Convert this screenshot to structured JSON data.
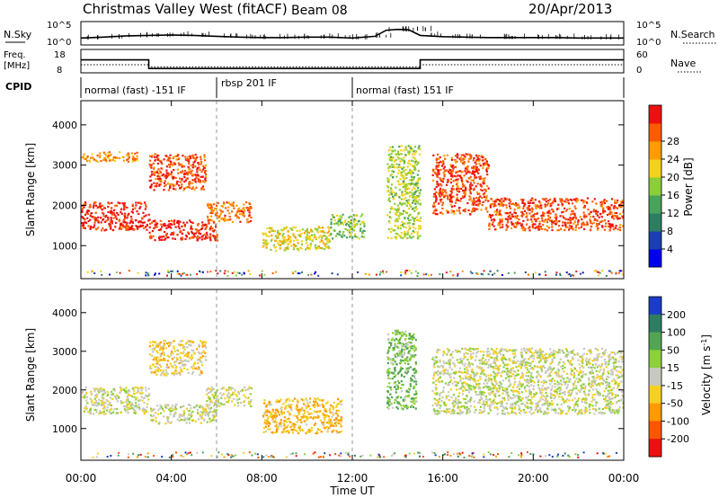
{
  "header": {
    "station": "Christmas Valley West (fitACF)",
    "beam": "Beam 08",
    "date": "20/Apr/2013"
  },
  "strips": {
    "nsky": {
      "label": "N.Sky",
      "ticks": [
        "10^5",
        "10^0"
      ]
    },
    "nsearch": {
      "label": "N.Search",
      "ticks": [
        "10^5",
        "10^0"
      ]
    },
    "freq": {
      "label_1": "Freq.",
      "label_2": "[MHz]",
      "ticks": [
        "18",
        "8"
      ]
    },
    "nave": {
      "label": "Nave",
      "ticks": [
        "60",
        "0"
      ]
    },
    "cpid": {
      "label": "CPID",
      "modes": [
        {
          "text": "normal (fast) -151 IF",
          "start_h": 0,
          "end_h": 6
        },
        {
          "text": "rbsp 201 IF",
          "start_h": 6,
          "end_h": 12
        },
        {
          "text": "normal (fast) 151 IF",
          "start_h": 12,
          "end_h": 24
        }
      ]
    }
  },
  "power_panel": {
    "ylabel": "Slant Range [km]",
    "yticks": [
      "1000",
      "2000",
      "3000",
      "4000"
    ],
    "colorbar": {
      "label": "Power [dB]",
      "ticks": [
        "4",
        "8",
        "12",
        "16",
        "20",
        "24",
        "28"
      ],
      "colors": [
        "#0000ee",
        "#1a3fb0",
        "#2e7d62",
        "#49a35a",
        "#8ccd3a",
        "#f2d21a",
        "#ff9c00",
        "#ff5a00",
        "#ee1010"
      ]
    }
  },
  "velocity_panel": {
    "ylabel": "Slant Range [km]",
    "yticks": [
      "1000",
      "2000",
      "3000",
      "4000"
    ],
    "colorbar": {
      "label": "Velocity [m s",
      "label_sup": "-1",
      "label_end": "]",
      "ticks": [
        "200",
        "100",
        "50",
        "15",
        "-15",
        "-50",
        "-100",
        "-200"
      ],
      "colors": [
        "#1a3cc8",
        "#2e7d62",
        "#52a552",
        "#8cd03a",
        "#c8c8c0",
        "#f5d020",
        "#ff9a00",
        "#ff5500",
        "#ee1010"
      ]
    }
  },
  "xaxis": {
    "label": "Time UT",
    "ticks": [
      "00:00",
      "04:00",
      "08:00",
      "12:00",
      "16:00",
      "20:00",
      "00:00"
    ]
  },
  "chart_data": [
    {
      "type": "line",
      "title": "N.Sky / N.Search",
      "x_hours": [
        0,
        1,
        2,
        3,
        4,
        5,
        6,
        7,
        8,
        9,
        10,
        11,
        12,
        13,
        13.5,
        14,
        14.5,
        15,
        16,
        17,
        18,
        19,
        20,
        21,
        22,
        23,
        24
      ],
      "nsky_log10": [
        1.4,
        1.6,
        1.9,
        2.0,
        2.1,
        2.0,
        1.8,
        1.6,
        1.5,
        1.5,
        1.6,
        1.6,
        1.4,
        1.8,
        3.2,
        3.4,
        3.3,
        2.0,
        1.7,
        1.6,
        1.5,
        1.5,
        1.5,
        1.5,
        1.4,
        1.4,
        1.4
      ],
      "ylim": [
        0,
        5
      ]
    },
    {
      "type": "line",
      "title": "Freq / Nave",
      "freq_segments_mhz": [
        {
          "start_h": 0,
          "end_h": 3,
          "value": 13.6
        },
        {
          "start_h": 3,
          "end_h": 15,
          "value": 9.6
        },
        {
          "start_h": 15,
          "end_h": 24,
          "value": 13.6
        }
      ],
      "freq_ylim": [
        8,
        18
      ],
      "nave_segments": [
        {
          "start_h": 0,
          "end_h": 3,
          "value": 20
        },
        {
          "start_h": 3,
          "end_h": 15,
          "value": 14
        },
        {
          "start_h": 15,
          "end_h": 24,
          "value": 20
        }
      ],
      "nave_ylim": [
        0,
        60
      ]
    },
    {
      "type": "heatmap",
      "title": "Power",
      "x_range_h": [
        0,
        24
      ],
      "y_range_km": [
        180,
        4600
      ],
      "bands": [
        {
          "t0": 0,
          "t1": 3,
          "r0": 1400,
          "r1": 2100,
          "value": 28
        },
        {
          "t0": 0,
          "t1": 2.5,
          "r0": 3100,
          "r1": 3350,
          "value": 22
        },
        {
          "t0": 3,
          "t1": 6,
          "r0": 1150,
          "r1": 1650,
          "value": 28
        },
        {
          "t0": 3,
          "t1": 5.5,
          "r0": 2400,
          "r1": 3300,
          "value": 26
        },
        {
          "t0": 5.5,
          "t1": 7.5,
          "r0": 1600,
          "r1": 2100,
          "value": 24
        },
        {
          "t0": 8,
          "t1": 11,
          "r0": 900,
          "r1": 1500,
          "value": 18
        },
        {
          "t0": 11,
          "t1": 12.5,
          "r0": 1200,
          "r1": 1800,
          "value": 14
        },
        {
          "t0": 13.5,
          "t1": 15,
          "r0": 1200,
          "r1": 3500,
          "value": 16
        },
        {
          "t0": 15.5,
          "t1": 18,
          "r0": 1800,
          "r1": 3300,
          "value": 26
        },
        {
          "t0": 18,
          "t1": 24,
          "r0": 1400,
          "r1": 2200,
          "value": 26
        }
      ],
      "zlim": [
        0,
        30
      ]
    },
    {
      "type": "heatmap",
      "title": "Velocity",
      "x_range_h": [
        0,
        24
      ],
      "y_range_km": [
        180,
        4600
      ],
      "bands": [
        {
          "t0": 0,
          "t1": 3,
          "r0": 1400,
          "r1": 2100,
          "value": 0
        },
        {
          "t0": 3,
          "t1": 6,
          "r0": 1150,
          "r1": 1650,
          "value": 0
        },
        {
          "t0": 3,
          "t1": 5.5,
          "r0": 2400,
          "r1": 3300,
          "value": -40
        },
        {
          "t0": 5.5,
          "t1": 7.5,
          "r0": 1600,
          "r1": 2100,
          "value": 0
        },
        {
          "t0": 8,
          "t1": 11.5,
          "r0": 900,
          "r1": 1800,
          "value": -60
        },
        {
          "t0": 13.5,
          "t1": 14.8,
          "r0": 1500,
          "r1": 3600,
          "value": 60
        },
        {
          "t0": 15.5,
          "t1": 24,
          "r0": 1400,
          "r1": 3100,
          "value": 0
        }
      ],
      "zlim": [
        -200,
        200
      ]
    }
  ]
}
